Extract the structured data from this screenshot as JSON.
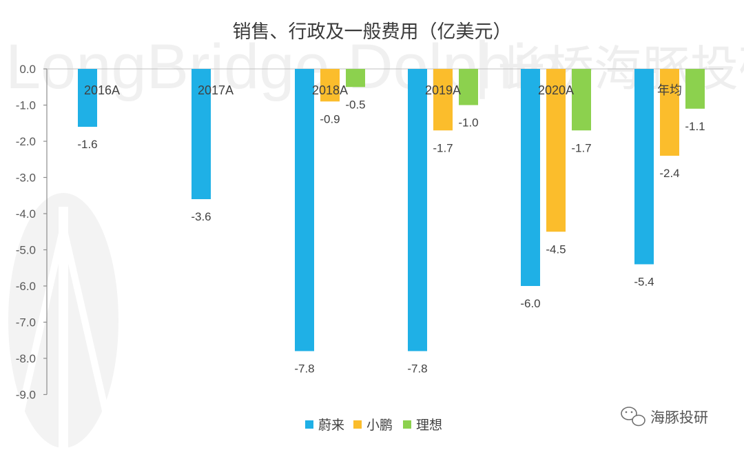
{
  "watermark": {
    "text": "LongBridge Dolphin",
    "separator": "|",
    "cn": "长桥海豚投研"
  },
  "badge": {
    "text": "海豚投研",
    "icon": "wechat-icon"
  },
  "colors": {
    "nio": "#1fb0e6",
    "xpeng": "#fbbd2c",
    "li": "#8cd14e",
    "axis": "#8c8c8c"
  },
  "chart_data": {
    "type": "bar",
    "title": "销售、行政及一般费用（亿美元）",
    "categories": [
      "2016A",
      "2017A",
      "2018A",
      "2019A",
      "2020A",
      "年均"
    ],
    "series": [
      {
        "name": "蔚来",
        "values": [
          -1.6,
          -3.6,
          -7.8,
          -7.8,
          -6.0,
          -5.4
        ],
        "labels": [
          "-1.6",
          "-3.6",
          "-7.8",
          "-7.8",
          "-6.0",
          "-5.4"
        ]
      },
      {
        "name": "小鹏",
        "values": [
          null,
          null,
          -0.9,
          -1.7,
          -4.5,
          -2.4
        ],
        "labels": [
          null,
          null,
          "-0.9",
          "-1.7",
          "-4.5",
          "-2.4"
        ]
      },
      {
        "name": "理想",
        "values": [
          null,
          null,
          -0.5,
          -1.0,
          -1.7,
          -1.1
        ],
        "labels": [
          null,
          null,
          "-0.5",
          "-1.0",
          "-1.7",
          "-1.1"
        ]
      }
    ],
    "yticks": [
      "0.0",
      "-1.0",
      "-2.0",
      "-3.0",
      "-4.0",
      "-5.0",
      "-6.0",
      "-7.0",
      "-8.0",
      "-9.0"
    ],
    "ylim": [
      -9,
      0
    ],
    "xlabel": "",
    "ylabel": "",
    "legend_position": "bottom"
  }
}
